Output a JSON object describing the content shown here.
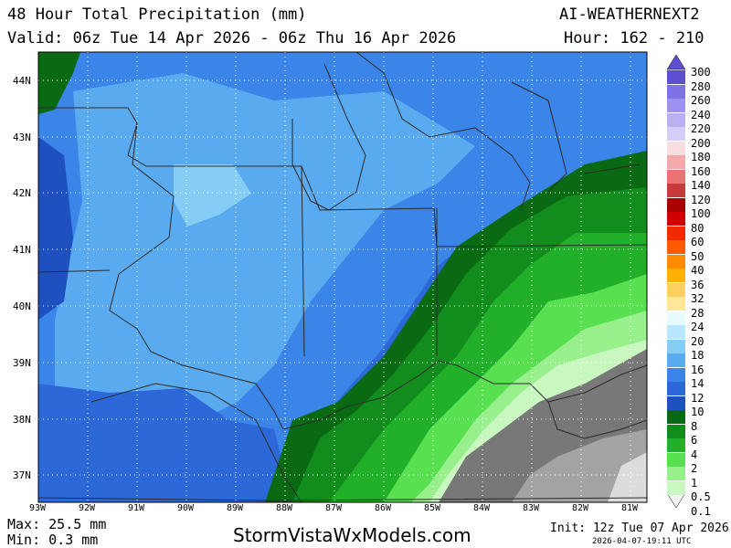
{
  "header": {
    "title": "48 Hour Total Precipitation (mm)",
    "model": "AI-WEATHERNEXT2",
    "valid": "Valid: 06z Tue 14 Apr 2026 - 06z Thu 16 Apr 2026",
    "hour": "Hour: 162 - 210"
  },
  "axes": {
    "lat_labels": [
      "44N",
      "43N",
      "42N",
      "41N",
      "40N",
      "39N",
      "38N",
      "37N"
    ],
    "lon_labels": [
      "93W",
      "92W",
      "91W",
      "90W",
      "89W",
      "88W",
      "87W",
      "86W",
      "85W",
      "84W",
      "83W",
      "82W",
      "81W"
    ]
  },
  "colorbar": {
    "levels": [
      "300",
      "280",
      "260",
      "240",
      "220",
      "200",
      "180",
      "160",
      "140",
      "120",
      "100",
      "80",
      "60",
      "50",
      "40",
      "36",
      "32",
      "28",
      "24",
      "20",
      "18",
      "16",
      "14",
      "12",
      "10",
      "8",
      "6",
      "4",
      "2",
      "1",
      "0.5",
      "0.1"
    ],
    "colors": [
      "#5d4fd0",
      "#7f72e6",
      "#9c91ee",
      "#b9b1f3",
      "#d4cff8",
      "#f6dede",
      "#f3a9a9",
      "#e87474",
      "#c63a3a",
      "#a80000",
      "#d00000",
      "#f22a00",
      "#ff5a00",
      "#ff8c00",
      "#ffb000",
      "#ffd060",
      "#ffe89a",
      "#e8fbff",
      "#b8e6ff",
      "#86cdf5",
      "#5aaaf0",
      "#3b84e8",
      "#2c68d8",
      "#1f50c0",
      "#0a6a14",
      "#128c1c",
      "#22b02a",
      "#58e050",
      "#98f08c",
      "#c8f8c0",
      "#e0e0e0",
      "#a8a8a8"
    ],
    "bottom_colors": [
      "#787878",
      "#a4a4a4",
      "#c4c4c4",
      "#dcdcdc",
      "#f4f4f4"
    ]
  },
  "footer": {
    "max": "Max: 25.5 mm",
    "min": "Min: 0.3 mm",
    "site": "StormVistaWxModels.com",
    "init": "Init: 12z Tue 07 Apr 2026",
    "stamp": "2026-04-07-19:11 UTC"
  }
}
